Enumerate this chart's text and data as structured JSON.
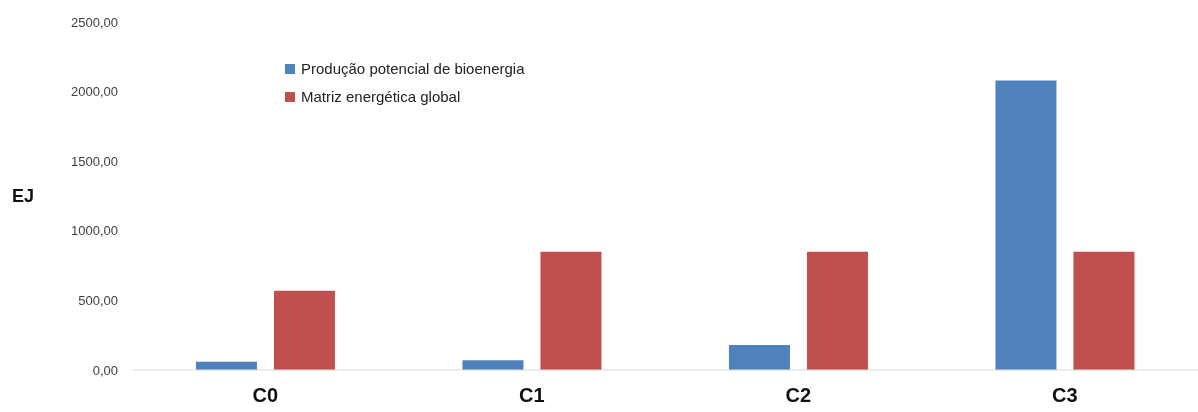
{
  "chart_data": {
    "type": "bar",
    "ylabel": "EJ",
    "categories": [
      "C0",
      "C1",
      "C2",
      "C3"
    ],
    "series": [
      {
        "name": "Produção potencial de bioenergia",
        "color": "#4f81bd",
        "values": [
          60,
          70,
          180,
          2080
        ]
      },
      {
        "name": "Matriz energética global",
        "color": "#c0504d",
        "values": [
          570,
          850,
          850,
          850
        ]
      }
    ],
    "ylim": [
      0,
      2500
    ],
    "yticks": [
      {
        "value": 0,
        "label": "0,00"
      },
      {
        "value": 500,
        "label": "500,00"
      },
      {
        "value": 1000,
        "label": "1000,00"
      },
      {
        "value": 1500,
        "label": "1500,00"
      },
      {
        "value": 2000,
        "label": "2000,00"
      },
      {
        "value": 2500,
        "label": "2500,00"
      }
    ],
    "legend": "top left"
  }
}
